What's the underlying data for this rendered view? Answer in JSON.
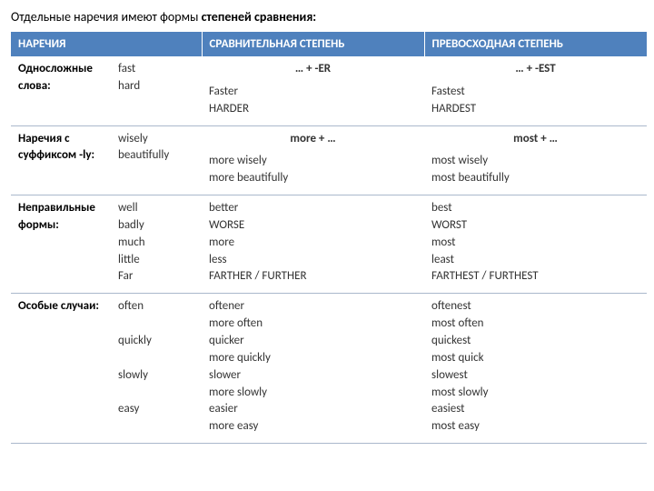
{
  "title_prefix": "Отдельные наречия имеют формы ",
  "title_bold": "степеней сравнения:",
  "headers": {
    "adverbs": "НАРЕЧИЯ",
    "comparative": "СРАВНИТЕЛЬНАЯ СТЕПЕНЬ",
    "superlative": "ПРЕВОСХОДНАЯ СТЕПЕНЬ"
  },
  "rows": [
    {
      "label": "Односложные слова:",
      "examples": "fast\nhard",
      "comp_pattern": "… + -ER",
      "comp_list": "Faster\nHARDER",
      "sup_pattern": "… + -EST",
      "sup_list": "Fastest\nHARDEST"
    },
    {
      "label": "Наречия с суффиксом -ly:",
      "examples": "wisely\nbeautifully",
      "comp_pattern": "more + …",
      "comp_list": "more wisely\nmore beautifully",
      "sup_pattern": "most + …",
      "sup_list": "most wisely\nmost beautifully"
    },
    {
      "label": "Неправильные формы:",
      "examples": "well\nbadly\nmuch\nlittle\nFar",
      "comp_pattern": "",
      "comp_list": "better\nWORSE\nmore\nless\nFARTHER / FURTHER",
      "sup_pattern": "",
      "sup_list": "best\nWORST\nmost\nleast\nFARTHEST / FURTHEST"
    },
    {
      "label": "Особые случаи:",
      "examples": "often\n\nquickly\n\nslowly\n\neasy",
      "comp_pattern": "",
      "comp_list": "oftener\nmore often\nquicker\nmore quickly\nslower\nmore slowly\neasier\nmore easy",
      "sup_pattern": "",
      "sup_list": "oftenest\nmost often\nquickest\nmost quick\nslowest\nmost slowly\neasiest\nmost easy"
    }
  ]
}
